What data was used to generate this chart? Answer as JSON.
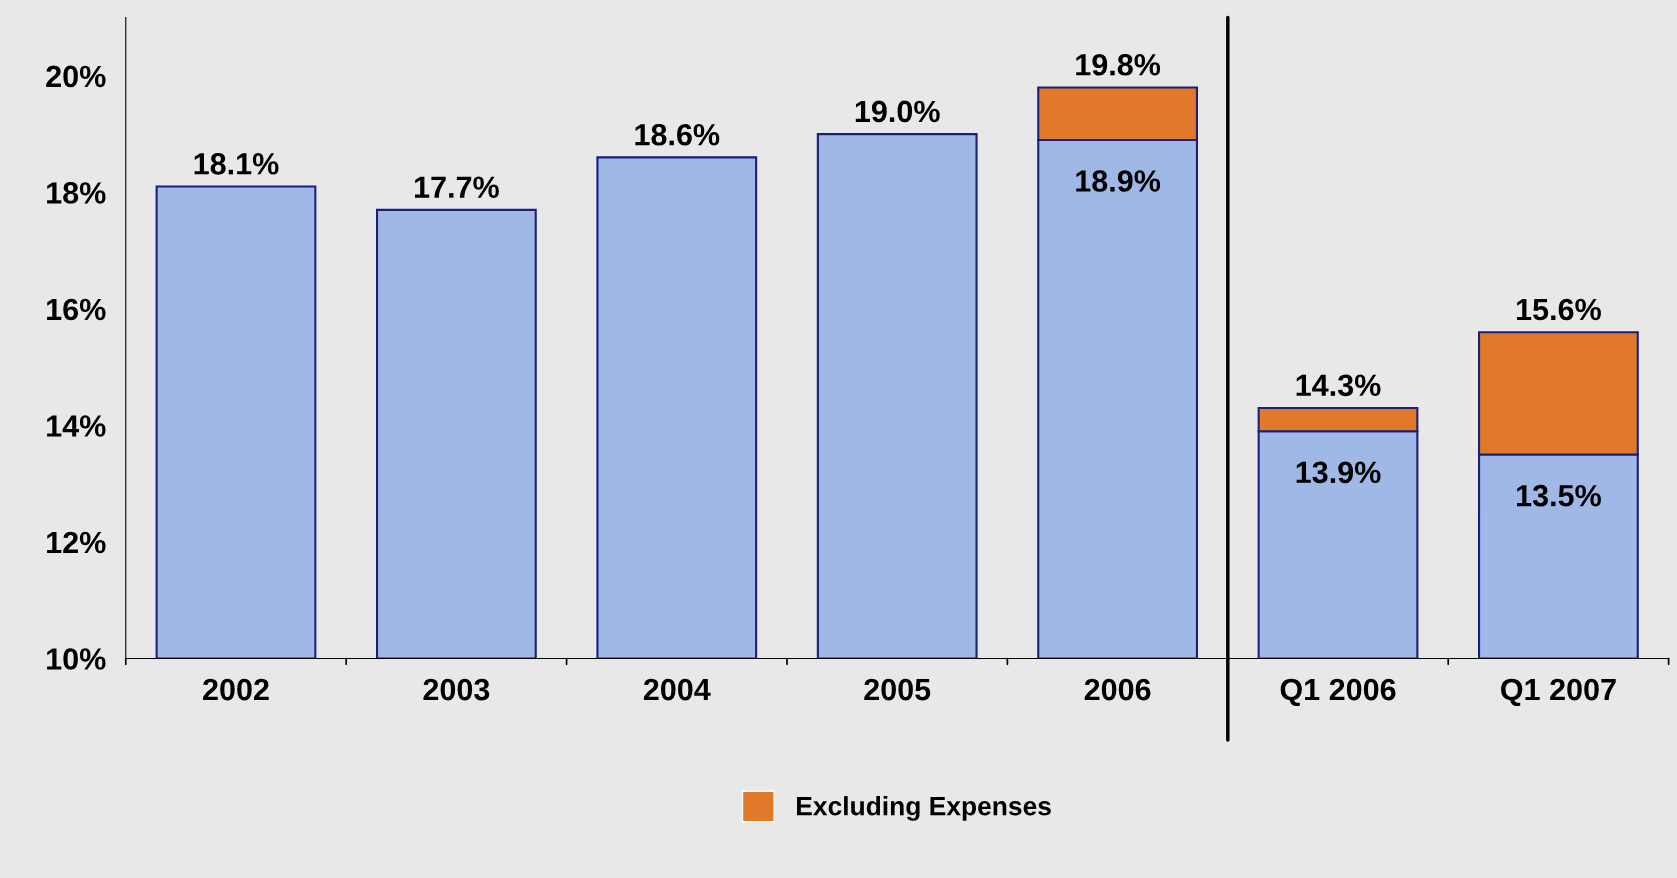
{
  "chart_data": {
    "type": "bar",
    "categories": [
      "2002",
      "2003",
      "2004",
      "2005",
      "2006",
      "Q1 2006",
      "Q1 2007"
    ],
    "series": [
      {
        "color": "#9fb8e6",
        "values": [
          18.1,
          17.7,
          18.6,
          19.0,
          18.9,
          13.9,
          13.5
        ],
        "value_labels": [
          null,
          null,
          null,
          null,
          "18.9%",
          "13.9%",
          "13.5%"
        ]
      },
      {
        "name": "Excluding Expenses",
        "color": "#e07a2a",
        "values": [
          null,
          null,
          null,
          null,
          0.9,
          0.4,
          2.1
        ],
        "base": [
          null,
          null,
          null,
          null,
          18.9,
          13.9,
          13.5
        ]
      }
    ],
    "totals": [
      "18.1%",
      "17.7%",
      "18.6%",
      "19.0%",
      "19.8%",
      "14.3%",
      "15.6%"
    ],
    "ylim": [
      10,
      21
    ],
    "yticks": [
      {
        "value": 10,
        "label": "10%"
      },
      {
        "value": 12,
        "label": "12%"
      },
      {
        "value": 14,
        "label": "14%"
      },
      {
        "value": 16,
        "label": "16%"
      },
      {
        "value": 18,
        "label": "18%"
      },
      {
        "value": 20,
        "label": "20%"
      }
    ],
    "grid": false,
    "legend": "bottom"
  }
}
